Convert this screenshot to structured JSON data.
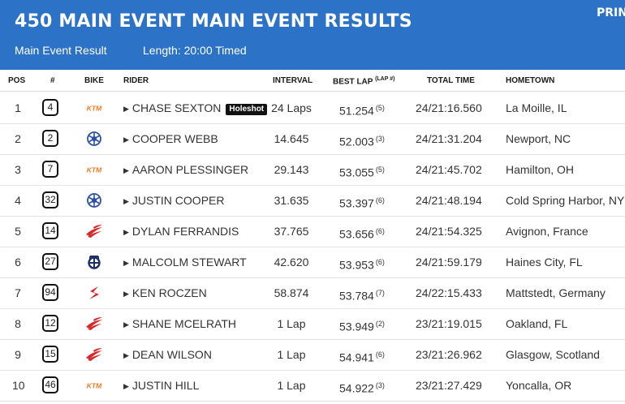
{
  "header": {
    "title": "450 MAIN EVENT MAIN EVENT RESULTS",
    "print_label": "PRIN",
    "event_type": "Main Event Result",
    "length": "Length: 20:00 Timed"
  },
  "columns": {
    "pos": "POS",
    "number": "#",
    "bike": "BIKE",
    "rider": "RIDER",
    "interval": "INTERVAL",
    "best_lap": "BEST LAP",
    "best_lap_note": "(LAP #)",
    "total_time": "TOTAL TIME",
    "hometown": "HOMETOWN"
  },
  "colors": {
    "header_bg": "#2c73c8",
    "ktm": "#f07a1a",
    "yamaha": "#2b4fa3",
    "honda": "#d42a2a",
    "husqvarna": "#1d2f6b",
    "suzuki": "#d8232a"
  },
  "rows": [
    {
      "pos": "1",
      "number": "4",
      "bike": "ktm-logo",
      "rider": "CHASE SEXTON",
      "badge": "Holeshot",
      "interval": "24 Laps",
      "best": "51.254",
      "lap": "(5)",
      "total": "24/21:16.560",
      "hometown": "La Moille, IL"
    },
    {
      "pos": "2",
      "number": "2",
      "bike": "yamaha-logo",
      "rider": "COOPER WEBB",
      "interval": "14.645",
      "best": "52.003",
      "lap": "(3)",
      "total": "24/21:31.204",
      "hometown": "Newport, NC"
    },
    {
      "pos": "3",
      "number": "7",
      "bike": "ktm-logo",
      "rider": "AARON PLESSINGER",
      "interval": "29.143",
      "best": "53.055",
      "lap": "(5)",
      "total": "24/21:45.702",
      "hometown": "Hamilton, OH"
    },
    {
      "pos": "4",
      "number": "32",
      "bike": "yamaha-logo",
      "rider": "JUSTIN COOPER",
      "interval": "31.635",
      "best": "53.397",
      "lap": "(6)",
      "total": "24/21:48.194",
      "hometown": "Cold Spring Harbor, NY"
    },
    {
      "pos": "5",
      "number": "14",
      "bike": "honda-logo",
      "rider": "DYLAN FERRANDIS",
      "interval": "37.765",
      "best": "53.656",
      "lap": "(6)",
      "total": "24/21:54.325",
      "hometown": "Avignon, France"
    },
    {
      "pos": "6",
      "number": "27",
      "bike": "husqvarna-logo",
      "rider": "MALCOLM STEWART",
      "interval": "42.620",
      "best": "53.953",
      "lap": "(6)",
      "total": "24/21:59.179",
      "hometown": "Haines City, FL"
    },
    {
      "pos": "7",
      "number": "94",
      "bike": "suzuki-logo",
      "rider": "KEN ROCZEN",
      "interval": "58.874",
      "best": "53.784",
      "lap": "(7)",
      "total": "24/22:15.433",
      "hometown": "Mattstedt, Germany"
    },
    {
      "pos": "8",
      "number": "12",
      "bike": "honda-logo",
      "rider": "SHANE MCELRATH",
      "interval": "1 Lap",
      "best": "53.949",
      "lap": "(2)",
      "total": "23/21:19.015",
      "hometown": "Oakland, FL"
    },
    {
      "pos": "9",
      "number": "15",
      "bike": "honda-logo",
      "rider": "DEAN WILSON",
      "interval": "1 Lap",
      "best": "54.941",
      "lap": "(6)",
      "total": "23/21:26.962",
      "hometown": "Glasgow, Scotland"
    },
    {
      "pos": "10",
      "number": "46",
      "bike": "ktm-logo",
      "rider": "JUSTIN HILL",
      "interval": "1 Lap",
      "best": "54.922",
      "lap": "(3)",
      "total": "23/21:27.429",
      "hometown": "Yoncalla, OR"
    }
  ]
}
